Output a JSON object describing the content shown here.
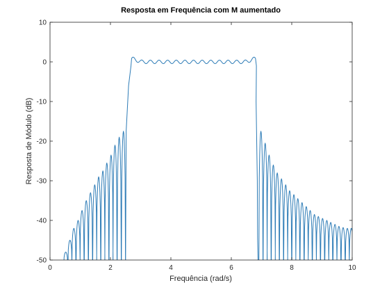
{
  "chart_data": {
    "type": "line",
    "title": "Resposta em Frequência com M aumentado",
    "xlabel": "Frequência (rad/s)",
    "ylabel": "Resposta de Módulo (dB)",
    "xlim": [
      0,
      10
    ],
    "ylim": [
      -50,
      10
    ],
    "xticks": [
      0,
      2,
      4,
      6,
      8,
      10
    ],
    "yticks": [
      10,
      0,
      -10,
      -20,
      -30,
      -40,
      -50
    ],
    "grid": false,
    "line_color": "#2c7bb6",
    "series": [
      {
        "passband_edges": [
          2.75,
          6.75
        ],
        "passband_ripple_db": 1.2,
        "transition_start_db": -17.5,
        "lower_sidelobes": {
          "x": [
            0.52,
            0.66,
            0.79,
            0.93,
            1.06,
            1.2,
            1.34,
            1.48,
            1.61,
            1.75,
            1.88,
            2.02,
            2.15,
            2.29,
            2.43
          ],
          "y": [
            -48,
            -45,
            -42,
            -40,
            -37.5,
            -35,
            -33,
            -31,
            -29,
            -27.5,
            -25.5,
            -23.5,
            -21,
            -19,
            -17.5
          ]
        },
        "upper_sidelobes": {
          "x": [
            6.98,
            7.12,
            7.25,
            7.39,
            7.52,
            7.66,
            7.8,
            7.93,
            8.07,
            8.2,
            8.34,
            8.48,
            8.61,
            8.75,
            8.88,
            9.02,
            9.16,
            9.29,
            9.43,
            9.56,
            9.7,
            9.84,
            9.97
          ],
          "y": [
            -17.5,
            -20.5,
            -23.5,
            -26,
            -28,
            -29.5,
            -31,
            -32.5,
            -33.5,
            -34.5,
            -35.5,
            -36.5,
            -37.5,
            -38.5,
            -39,
            -39.5,
            -40,
            -40.5,
            -41,
            -41.5,
            -41.8,
            -42,
            -42
          ]
        }
      }
    ]
  }
}
